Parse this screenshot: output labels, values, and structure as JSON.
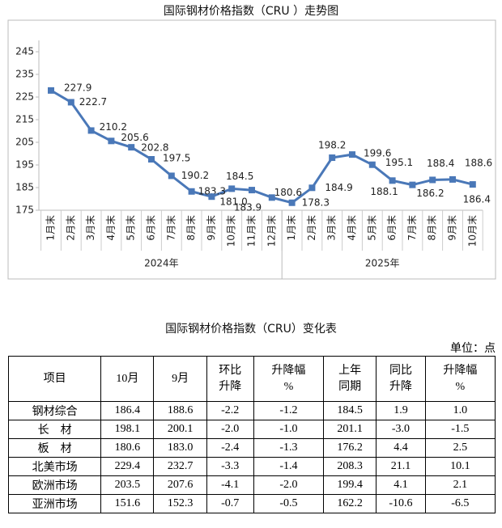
{
  "chart_data": {
    "type": "line",
    "title": "国际钢材价格指数（CRU ）走势图",
    "categories": [
      "1月末",
      "2月末",
      "3月末",
      "4月末",
      "5月末",
      "6月末",
      "7月末",
      "8月末",
      "9月末",
      "10月末",
      "11月末",
      "12月末",
      "1月末",
      "2月末",
      "3月末",
      "4月末",
      "5月末",
      "6月末",
      "7月末",
      "8月末",
      "9月末",
      "10月末"
    ],
    "category_groups": [
      "2024年",
      "2025年"
    ],
    "values": [
      227.9,
      222.7,
      210.2,
      205.6,
      202.8,
      197.5,
      190.2,
      183.3,
      181.0,
      184.5,
      183.9,
      180.6,
      178.3,
      184.9,
      198.2,
      199.6,
      195.1,
      188.1,
      186.2,
      188.4,
      188.6,
      186.4
    ],
    "value_labels": [
      "227.9",
      "222.7",
      "210.2",
      "205.6",
      "202.8",
      "197.5",
      "190.2",
      "183.3",
      "181.0",
      "184.5",
      "183.9",
      "180.6",
      "178.3",
      "184.9",
      "198.2",
      "199.6",
      "195.1",
      "188.1",
      "186.2",
      "188.4",
      "188.6",
      "186.4"
    ],
    "color": "#4a78b8",
    "ylim": [
      175,
      245
    ],
    "yticks": [
      175,
      185,
      195,
      205,
      215,
      225,
      235,
      245
    ]
  },
  "table": {
    "title": "国际钢材价格指数（CRU）变化表",
    "unit": "单位：点",
    "header": [
      [
        "项目"
      ],
      [
        "10月"
      ],
      [
        "9月"
      ],
      [
        "环比",
        "升降"
      ],
      [
        "升降幅",
        "%"
      ],
      [
        "上年",
        "同期"
      ],
      [
        "同比",
        "升降"
      ],
      [
        "升降幅",
        "%"
      ]
    ],
    "rows": [
      [
        "钢材综合",
        "186.4",
        "188.6",
        "-2.2",
        "-1.2",
        "184.5",
        "1.9",
        "1.0"
      ],
      [
        "长　材",
        "198.1",
        "200.1",
        "-2.0",
        "-1.0",
        "201.1",
        "-3.0",
        "-1.5"
      ],
      [
        "板　材",
        "180.6",
        "183.0",
        "-2.4",
        "-1.3",
        "176.2",
        "4.4",
        "2.5"
      ],
      [
        "北美市场",
        "229.4",
        "232.7",
        "-3.3",
        "-1.4",
        "208.3",
        "21.1",
        "10.1"
      ],
      [
        "欧洲市场",
        "203.5",
        "207.6",
        "-4.1",
        "-2.0",
        "199.4",
        "4.1",
        "2.1"
      ],
      [
        "亚洲市场",
        "151.6",
        "152.3",
        "-0.7",
        "-0.5",
        "162.2",
        "-10.6",
        "-6.5"
      ]
    ]
  }
}
